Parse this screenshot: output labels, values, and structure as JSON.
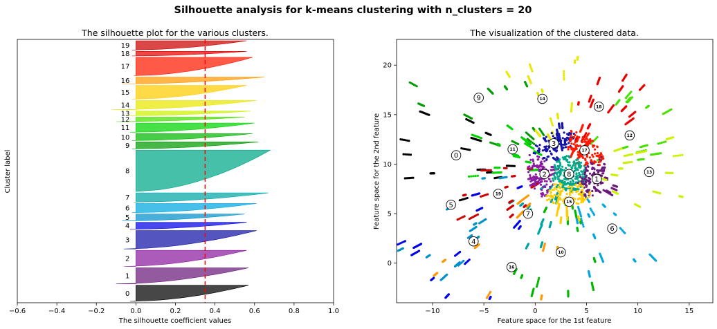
{
  "suptitle": "Silhouette analysis for k-means clustering with n_clusters = 20",
  "chart_data": [
    {
      "type": "silhouette",
      "title": "The silhouette plot for the various clusters.",
      "xlabel": "The silhouette coefficient values",
      "ylabel": "Cluster label",
      "xlim": [
        -0.6,
        1.0
      ],
      "xticks": [
        -0.6,
        -0.4,
        -0.2,
        0.0,
        0.2,
        0.4,
        0.6,
        0.8,
        1.0
      ],
      "xtick_labels": [
        "−0.6",
        "−0.4",
        "−0.2",
        "0.0",
        "0.2",
        "0.4",
        "0.6",
        "0.8",
        "1.0"
      ],
      "average_silhouette": 0.35,
      "clusters": [
        {
          "label": "0",
          "size": 7,
          "max": 0.57,
          "min": -0.03,
          "color": "#000000"
        },
        {
          "label": "1",
          "size": 7,
          "max": 0.57,
          "min": -0.1,
          "color": "#6a1a7a"
        },
        {
          "label": "2",
          "size": 7,
          "max": 0.56,
          "min": -0.06,
          "color": "#8c1ca0"
        },
        {
          "label": "3",
          "size": 8,
          "max": 0.61,
          "min": -0.06,
          "color": "#1414a8"
        },
        {
          "label": "4",
          "size": 3,
          "max": 0.56,
          "min": -0.03,
          "color": "#0000e6"
        },
        {
          "label": "5",
          "size": 3,
          "max": 0.55,
          "min": -0.07,
          "color": "#0090cc"
        },
        {
          "label": "6",
          "size": 4,
          "max": 0.61,
          "min": -0.02,
          "color": "#00a7e0"
        },
        {
          "label": "7",
          "size": 4,
          "max": 0.67,
          "min": -0.01,
          "color": "#00a6a6"
        },
        {
          "label": "8",
          "size": 18,
          "max": 0.68,
          "min": 0.0,
          "color": "#00a889"
        },
        {
          "label": "9",
          "size": 3,
          "max": 0.62,
          "min": -0.02,
          "color": "#009c00"
        },
        {
          "label": "10",
          "size": 3,
          "max": 0.59,
          "min": -0.02,
          "color": "#00b800"
        },
        {
          "label": "11",
          "size": 4,
          "max": 0.6,
          "min": -0.03,
          "color": "#00d400"
        },
        {
          "label": "12",
          "size": 2,
          "max": 0.55,
          "min": -0.1,
          "color": "#48e000"
        },
        {
          "label": "13",
          "size": 2,
          "max": 0.58,
          "min": -0.05,
          "color": "#ccf000"
        },
        {
          "label": "14",
          "size": 4,
          "max": 0.61,
          "min": -0.12,
          "color": "#e8e800"
        },
        {
          "label": "15",
          "size": 6,
          "max": 0.56,
          "min": -0.02,
          "color": "#ffcc00"
        },
        {
          "label": "16",
          "size": 3,
          "max": 0.65,
          "min": -0.07,
          "color": "#ff9900"
        },
        {
          "label": "17",
          "size": 8,
          "max": 0.59,
          "min": -0.01,
          "color": "#ff1a00"
        },
        {
          "label": "18",
          "size": 2,
          "max": 0.56,
          "min": -0.02,
          "color": "#e80000"
        },
        {
          "label": "19",
          "size": 4,
          "max": 0.56,
          "min": -0.02,
          "color": "#cc0000"
        }
      ]
    },
    {
      "type": "scatter",
      "title": "The visualization of the clustered data.",
      "xlabel": "Feature space for the 1st feature",
      "ylabel": "Feature space for the 2nd feature",
      "xlim": [
        -13.5,
        17.3
      ],
      "ylim": [
        -4.0,
        22.6
      ],
      "xticks": [
        -10,
        -5,
        0,
        5,
        10,
        15
      ],
      "xtick_labels": [
        "−10",
        "−5",
        "0",
        "5",
        "10",
        "15"
      ],
      "yticks": [
        0,
        5,
        10,
        15,
        20
      ],
      "ytick_labels": [
        "0",
        "5",
        "10",
        "15",
        "20"
      ],
      "center_point": [
        3.0,
        9.6
      ],
      "centers": [
        {
          "label": "0",
          "x": -7.7,
          "y": 10.9,
          "color": "#000000"
        },
        {
          "label": "1",
          "x": 6.0,
          "y": 8.5,
          "color": "#6a1a7a"
        },
        {
          "label": "2",
          "x": 0.9,
          "y": 9.0,
          "color": "#8c1ca0"
        },
        {
          "label": "3",
          "x": 1.8,
          "y": 12.1,
          "color": "#1414a8"
        },
        {
          "label": "4",
          "x": -6.0,
          "y": 2.2,
          "color": "#0000e6"
        },
        {
          "label": "5",
          "x": -8.2,
          "y": 5.9,
          "color": "#0090cc"
        },
        {
          "label": "6",
          "x": 7.5,
          "y": 3.5,
          "color": "#00a7e0"
        },
        {
          "label": "7",
          "x": -0.7,
          "y": 5.0,
          "color": "#00a6a6"
        },
        {
          "label": "8",
          "x": 3.3,
          "y": 9.0,
          "color": "#00a889"
        },
        {
          "label": "9",
          "x": -5.5,
          "y": 16.7,
          "color": "#009c00"
        },
        {
          "label": "10",
          "x": 2.5,
          "y": 1.1,
          "color": "#00b800"
        },
        {
          "label": "11",
          "x": -2.2,
          "y": 11.5,
          "color": "#00d400"
        },
        {
          "label": "12",
          "x": 9.2,
          "y": 12.9,
          "color": "#48e000"
        },
        {
          "label": "13",
          "x": 11.1,
          "y": 9.2,
          "color": "#ccf000"
        },
        {
          "label": "14",
          "x": 0.7,
          "y": 16.6,
          "color": "#e8e800"
        },
        {
          "label": "15",
          "x": 3.3,
          "y": 6.2,
          "color": "#ffcc00"
        },
        {
          "label": "16",
          "x": -2.3,
          "y": -0.4,
          "color": "#ff9900"
        },
        {
          "label": "17",
          "x": 4.8,
          "y": 11.4,
          "color": "#ff1a00"
        },
        {
          "label": "18",
          "x": 6.2,
          "y": 15.8,
          "color": "#e80000"
        },
        {
          "label": "19",
          "x": -3.6,
          "y": 7.0,
          "color": "#cc0000"
        }
      ]
    }
  ]
}
